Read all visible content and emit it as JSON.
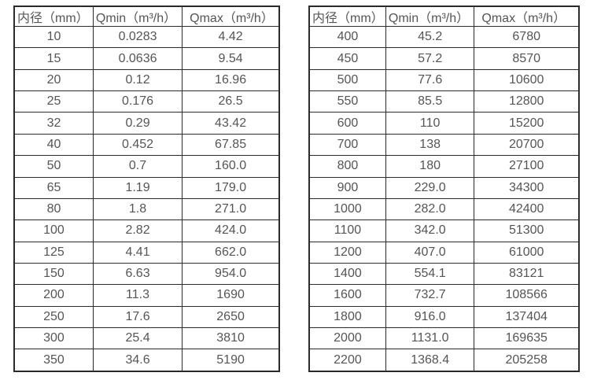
{
  "page": {
    "background_color": "#ffffff",
    "text_color": "#555555",
    "border_color": "#2b2b2b"
  },
  "tables": [
    {
      "name": "flow-range-table-small-diameters",
      "headers": [
        "内径（mm）",
        "Qmin（m³/h）",
        "Qmax（m³/h）"
      ],
      "rows": [
        [
          "10",
          "0.0283",
          "4.42"
        ],
        [
          "15",
          "0.0636",
          "9.54"
        ],
        [
          "20",
          "0.12",
          "16.96"
        ],
        [
          "25",
          "0.176",
          "26.5"
        ],
        [
          "32",
          "0.29",
          "43.42"
        ],
        [
          "40",
          "0.452",
          "67.85"
        ],
        [
          "50",
          "0.7",
          "160.0"
        ],
        [
          "65",
          "1.19",
          "179.0"
        ],
        [
          "80",
          "1.8",
          "271.0"
        ],
        [
          "100",
          "2.82",
          "424.0"
        ],
        [
          "125",
          "4.41",
          "662.0"
        ],
        [
          "150",
          "6.63",
          "954.0"
        ],
        [
          "200",
          "11.3",
          "1690"
        ],
        [
          "250",
          "17.6",
          "2650"
        ],
        [
          "300",
          "25.4",
          "3810"
        ],
        [
          "350",
          "34.6",
          "5190"
        ]
      ]
    },
    {
      "name": "flow-range-table-large-diameters",
      "headers": [
        "内径（mm）",
        "Qmin（m³/h）",
        "Qmax（m³/h）"
      ],
      "rows": [
        [
          "400",
          "45.2",
          "6780"
        ],
        [
          "450",
          "57.2",
          "8570"
        ],
        [
          "500",
          "77.6",
          "10600"
        ],
        [
          "550",
          "85.5",
          "12800"
        ],
        [
          "600",
          "110",
          "15200"
        ],
        [
          "700",
          "138",
          "20700"
        ],
        [
          "800",
          "180",
          "27100"
        ],
        [
          "900",
          "229.0",
          "34300"
        ],
        [
          "1000",
          "282.0",
          "42400"
        ],
        [
          "1100",
          "342.0",
          "51300"
        ],
        [
          "1200",
          "407.0",
          "61000"
        ],
        [
          "1400",
          "554.1",
          "83121"
        ],
        [
          "1600",
          "732.7",
          "108566"
        ],
        [
          "1800",
          "916.0",
          "137404"
        ],
        [
          "2000",
          "1131.0",
          "169635"
        ],
        [
          "2200",
          "1368.4",
          "205258"
        ]
      ]
    }
  ]
}
